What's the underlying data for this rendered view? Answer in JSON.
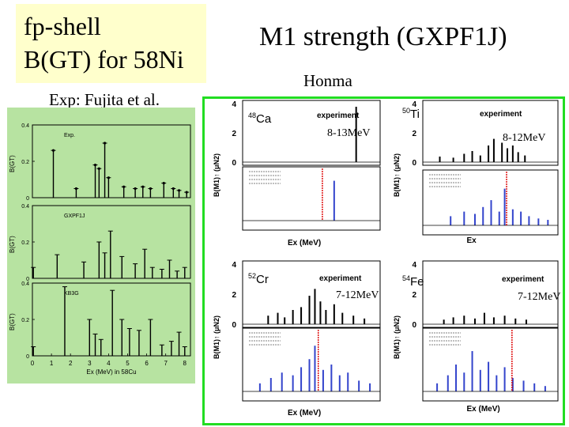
{
  "slide": {
    "title_line1": "fp-shell",
    "title_line2": "B(GT) for 58Ni",
    "m1_title": "M1 strength (GXPF1J)",
    "author": "Honma",
    "exp_ref": "Exp: Fujita et al."
  },
  "colors": {
    "title_bg": "#ffffcc",
    "left_panel_bg": "#b7e3a1",
    "right_border": "#22dd22",
    "theory_bar": "#3344cc",
    "marker_line": "#dd0000"
  },
  "left_figure": {
    "panels": [
      {
        "label": "Exp.",
        "ticks": [
          "0.4",
          "0.2",
          "0"
        ]
      },
      {
        "label": "GXPF1J",
        "ticks": [
          "0.4",
          "0.2",
          "0"
        ]
      },
      {
        "label": "KB3G",
        "ticks": [
          "0.4",
          "0.2",
          "0"
        ]
      }
    ],
    "ylabel": "B(GT)",
    "xticks": [
      "0",
      "1",
      "2",
      "3",
      "4",
      "5",
      "6",
      "7",
      "8"
    ],
    "xlabel": "Ex (MeV) in 58Cu"
  },
  "chart_data": [
    {
      "type": "bar",
      "title": "B(GT) 58Ni - Exp.",
      "x": [
        1.1,
        2.3,
        3.3,
        3.5,
        3.8,
        4.0,
        4.8,
        5.4,
        5.8,
        6.2,
        6.9,
        7.4,
        7.7,
        8.1
      ],
      "values": [
        0.26,
        0.05,
        0.18,
        0.16,
        0.3,
        0.11,
        0.06,
        0.05,
        0.06,
        0.05,
        0.08,
        0.05,
        0.04,
        0.03
      ],
      "xlabel": "Ex (MeV) in 58Cu",
      "ylabel": "B(GT)",
      "xlim": [
        0,
        8.3
      ],
      "ylim": [
        0,
        0.4
      ]
    },
    {
      "type": "bar",
      "title": "B(GT) 58Ni - GXPF1J",
      "x": [
        0.05,
        1.3,
        2.7,
        3.5,
        3.8,
        4.1,
        4.7,
        5.4,
        5.9,
        6.3,
        6.8,
        7.2,
        7.6,
        8.0
      ],
      "values": [
        0.06,
        0.13,
        0.09,
        0.2,
        0.14,
        0.26,
        0.12,
        0.08,
        0.16,
        0.06,
        0.05,
        0.1,
        0.04,
        0.06
      ],
      "xlabel": "Ex (MeV) in 58Cu",
      "ylabel": "B(GT)",
      "xlim": [
        0,
        8.3
      ],
      "ylim": [
        0,
        0.4
      ]
    },
    {
      "type": "bar",
      "title": "B(GT) 58Ni - KB3G",
      "x": [
        0.05,
        1.7,
        3.0,
        3.3,
        3.6,
        4.2,
        4.7,
        5.1,
        5.6,
        6.2,
        6.8,
        7.3,
        7.7,
        8.0
      ],
      "values": [
        0.05,
        0.38,
        0.2,
        0.12,
        0.09,
        0.36,
        0.2,
        0.15,
        0.14,
        0.2,
        0.06,
        0.08,
        0.13,
        0.05
      ],
      "xlabel": "Ex (MeV) in 58Cu",
      "ylabel": "B(GT)",
      "xlim": [
        0,
        8.3
      ],
      "ylim": [
        0,
        0.4
      ]
    }
  ],
  "m1_panels": [
    {
      "nucleus_mass": "48",
      "nucleus_symbol": "Ca",
      "legend": "experiment",
      "energy": "8-13MeV",
      "yticks": [
        "4",
        "2",
        "0"
      ],
      "ylabel": "B(M1)↑ (μN2)",
      "exp_bars": [
        [
          0.82,
          1.0
        ]
      ],
      "th_bars": [
        [
          0.66,
          0.9
        ]
      ],
      "marker": 0.58,
      "xlabel": "Ex (MeV)"
    },
    {
      "nucleus_mass": "50",
      "nucleus_symbol": "Ti",
      "legend": "experiment",
      "energy": "8-12MeV",
      "yticks": [
        "4",
        "2",
        "0"
      ],
      "ylabel": "B(M1)↑ (μN2)",
      "exp_bars": [
        [
          0.12,
          0.1
        ],
        [
          0.22,
          0.08
        ],
        [
          0.3,
          0.15
        ],
        [
          0.36,
          0.2
        ],
        [
          0.42,
          0.12
        ],
        [
          0.48,
          0.3
        ],
        [
          0.52,
          0.42
        ],
        [
          0.58,
          0.35
        ],
        [
          0.62,
          0.25
        ],
        [
          0.66,
          0.3
        ],
        [
          0.7,
          0.18
        ],
        [
          0.75,
          0.12
        ]
      ],
      "th_bars": [
        [
          0.2,
          0.2
        ],
        [
          0.3,
          0.3
        ],
        [
          0.38,
          0.25
        ],
        [
          0.44,
          0.4
        ],
        [
          0.5,
          0.55
        ],
        [
          0.56,
          0.3
        ],
        [
          0.6,
          0.8
        ],
        [
          0.66,
          0.35
        ],
        [
          0.72,
          0.3
        ],
        [
          0.78,
          0.2
        ],
        [
          0.85,
          0.15
        ],
        [
          0.92,
          0.12
        ]
      ],
      "marker": 0.62,
      "xlabel": "Ex"
    },
    {
      "nucleus_mass": "52",
      "nucleus_symbol": "Cr",
      "legend": "experiment",
      "energy": "7-12MeV",
      "yticks": [
        "4",
        "2",
        "0"
      ],
      "ylabel": "B(M1)↑ (μN2)",
      "exp_bars": [
        [
          0.18,
          0.15
        ],
        [
          0.25,
          0.2
        ],
        [
          0.3,
          0.12
        ],
        [
          0.36,
          0.25
        ],
        [
          0.42,
          0.3
        ],
        [
          0.48,
          0.5
        ],
        [
          0.52,
          0.62
        ],
        [
          0.56,
          0.4
        ],
        [
          0.6,
          0.25
        ],
        [
          0.66,
          0.35
        ],
        [
          0.72,
          0.2
        ],
        [
          0.8,
          0.15
        ],
        [
          0.88,
          0.1
        ]
      ],
      "th_bars": [
        [
          0.12,
          0.15
        ],
        [
          0.2,
          0.25
        ],
        [
          0.28,
          0.35
        ],
        [
          0.36,
          0.3
        ],
        [
          0.42,
          0.45
        ],
        [
          0.48,
          0.6
        ],
        [
          0.52,
          0.85
        ],
        [
          0.58,
          0.4
        ],
        [
          0.64,
          0.5
        ],
        [
          0.7,
          0.3
        ],
        [
          0.76,
          0.35
        ],
        [
          0.84,
          0.2
        ],
        [
          0.92,
          0.15
        ]
      ],
      "marker": 0.55,
      "xlabel": "Ex (MeV)"
    },
    {
      "nucleus_mass": "54",
      "nucleus_symbol": "Fe",
      "legend": "experiment",
      "energy": "7-12MeV",
      "yticks": [
        "4",
        "2",
        "0"
      ],
      "ylabel": "B(M1)↑ (μN2)",
      "exp_bars": [
        [
          0.15,
          0.08
        ],
        [
          0.22,
          0.12
        ],
        [
          0.3,
          0.15
        ],
        [
          0.38,
          0.1
        ],
        [
          0.45,
          0.2
        ],
        [
          0.52,
          0.12
        ],
        [
          0.6,
          0.15
        ],
        [
          0.68,
          0.1
        ],
        [
          0.76,
          0.08
        ]
      ],
      "th_bars": [
        [
          0.1,
          0.15
        ],
        [
          0.18,
          0.3
        ],
        [
          0.24,
          0.5
        ],
        [
          0.3,
          0.35
        ],
        [
          0.36,
          0.75
        ],
        [
          0.42,
          0.4
        ],
        [
          0.48,
          0.55
        ],
        [
          0.54,
          0.3
        ],
        [
          0.6,
          0.45
        ],
        [
          0.66,
          0.25
        ],
        [
          0.74,
          0.2
        ],
        [
          0.82,
          0.15
        ],
        [
          0.9,
          0.1
        ]
      ],
      "marker": 0.66,
      "xlabel": "Ex (MeV)"
    }
  ]
}
